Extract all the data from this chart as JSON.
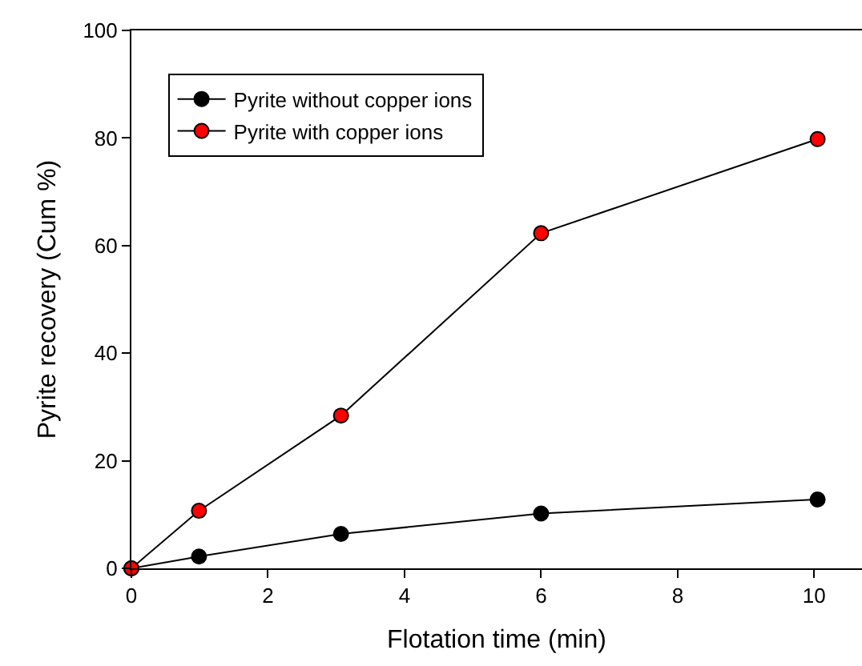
{
  "chart_data": {
    "type": "line",
    "xlabel": "Flotation time (min)",
    "ylabel": "Pyrite recovery (Cum %)",
    "xlim": [
      0,
      10.7
    ],
    "xticks": [
      0,
      2,
      4,
      6,
      8,
      10
    ],
    "ylim": [
      0,
      100
    ],
    "yticks": [
      0,
      20,
      40,
      60,
      80,
      100
    ],
    "x": [
      0,
      0.99,
      3.07,
      6,
      10.05
    ],
    "series": [
      {
        "name": "Pyrite without copper ions",
        "color": "#000000",
        "values": [
          0,
          2.2,
          6.4,
          10.2,
          12.8
        ]
      },
      {
        "name": "Pyrite with copper ions",
        "color": "#ff0000",
        "values": [
          0,
          10.7,
          28.4,
          62.3,
          79.8
        ]
      }
    ],
    "marker": "circle",
    "line_style": "solid",
    "legend": "top left",
    "grid": false
  }
}
